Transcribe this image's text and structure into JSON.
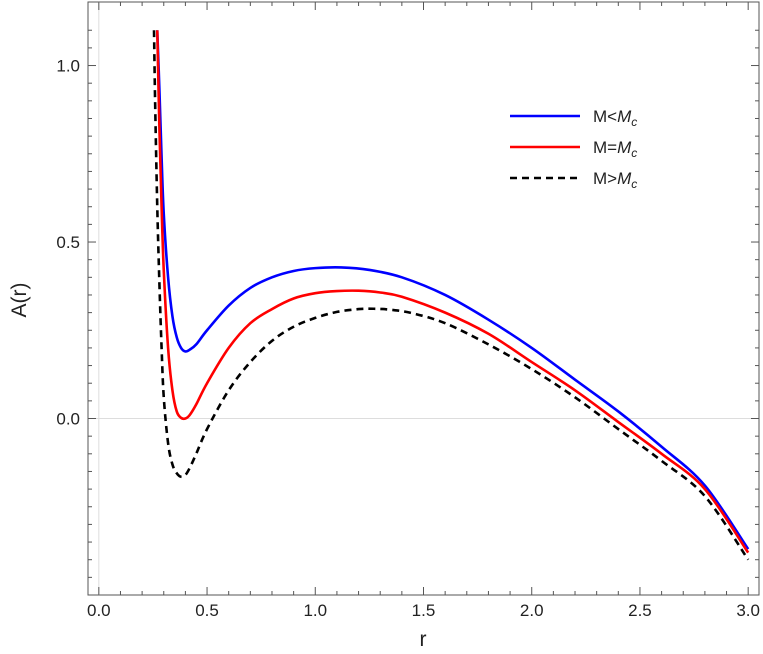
{
  "chart_data": {
    "type": "line",
    "xlabel": "r",
    "ylabel": "A(r)",
    "xlim": [
      -0.05,
      3.05
    ],
    "ylim": [
      -0.5,
      1.18
    ],
    "x_ticks": [
      0.0,
      0.5,
      1.0,
      1.5,
      2.0,
      2.5,
      3.0
    ],
    "x_tick_labels": [
      "0.0",
      "0.5",
      "1.0",
      "1.5",
      "2.0",
      "2.5",
      "3.0"
    ],
    "y_ticks": [
      0.0,
      0.5,
      1.0
    ],
    "y_tick_labels": [
      "0.0",
      "0.5",
      "1.0"
    ],
    "grid": false,
    "legend_position": "top-right",
    "series": [
      {
        "name": "M<M_c",
        "legend": {
          "main": "M<",
          "italic": "M",
          "sub": "c"
        },
        "color": "#0000ff",
        "dash": "solid",
        "x": [
          0.27,
          0.28,
          0.29,
          0.3,
          0.32,
          0.34,
          0.36,
          0.38,
          0.4,
          0.42,
          0.45,
          0.5,
          0.6,
          0.7,
          0.8,
          0.9,
          1.0,
          1.12,
          1.25,
          1.4,
          1.6,
          1.8,
          2.0,
          2.2,
          2.4,
          2.6,
          2.8,
          3.0
        ],
        "y": [
          1.1,
          0.93,
          0.74,
          0.58,
          0.4,
          0.29,
          0.23,
          0.2,
          0.19,
          0.195,
          0.21,
          0.25,
          0.32,
          0.37,
          0.4,
          0.418,
          0.426,
          0.428,
          0.421,
          0.4,
          0.35,
          0.28,
          0.2,
          0.11,
          0.02,
          -0.08,
          -0.19,
          -0.37
        ]
      },
      {
        "name": "M=M_c",
        "legend": {
          "main": "M=",
          "italic": "M",
          "sub": "c"
        },
        "color": "#ff0000",
        "dash": "solid",
        "x": [
          0.27,
          0.28,
          0.29,
          0.3,
          0.32,
          0.34,
          0.36,
          0.38,
          0.4,
          0.42,
          0.45,
          0.5,
          0.6,
          0.7,
          0.8,
          0.9,
          1.0,
          1.1,
          1.2,
          1.3,
          1.4,
          1.6,
          1.8,
          2.0,
          2.2,
          2.4,
          2.6,
          2.8,
          3.0
        ],
        "y": [
          1.1,
          0.82,
          0.6,
          0.42,
          0.2,
          0.08,
          0.02,
          0.002,
          0.0,
          0.01,
          0.04,
          0.1,
          0.2,
          0.27,
          0.31,
          0.34,
          0.355,
          0.361,
          0.362,
          0.357,
          0.345,
          0.3,
          0.24,
          0.16,
          0.08,
          -0.01,
          -0.1,
          -0.2,
          -0.38
        ]
      },
      {
        "name": "M>M_c",
        "legend": {
          "main": "M>",
          "italic": "M",
          "sub": "c"
        },
        "color": "#000000",
        "dash": "dashed",
        "x": [
          0.255,
          0.26,
          0.27,
          0.28,
          0.29,
          0.3,
          0.32,
          0.34,
          0.36,
          0.38,
          0.4,
          0.42,
          0.45,
          0.5,
          0.6,
          0.7,
          0.8,
          0.9,
          1.0,
          1.1,
          1.2,
          1.27,
          1.35,
          1.45,
          1.6,
          1.8,
          2.0,
          2.2,
          2.4,
          2.6,
          2.8,
          3.0
        ],
        "y": [
          1.1,
          0.9,
          0.6,
          0.38,
          0.2,
          0.06,
          -0.07,
          -0.13,
          -0.155,
          -0.165,
          -0.16,
          -0.14,
          -0.1,
          -0.03,
          0.08,
          0.16,
          0.22,
          0.26,
          0.285,
          0.302,
          0.31,
          0.311,
          0.308,
          0.298,
          0.27,
          0.21,
          0.14,
          0.06,
          -0.03,
          -0.12,
          -0.22,
          -0.4
        ]
      }
    ]
  }
}
